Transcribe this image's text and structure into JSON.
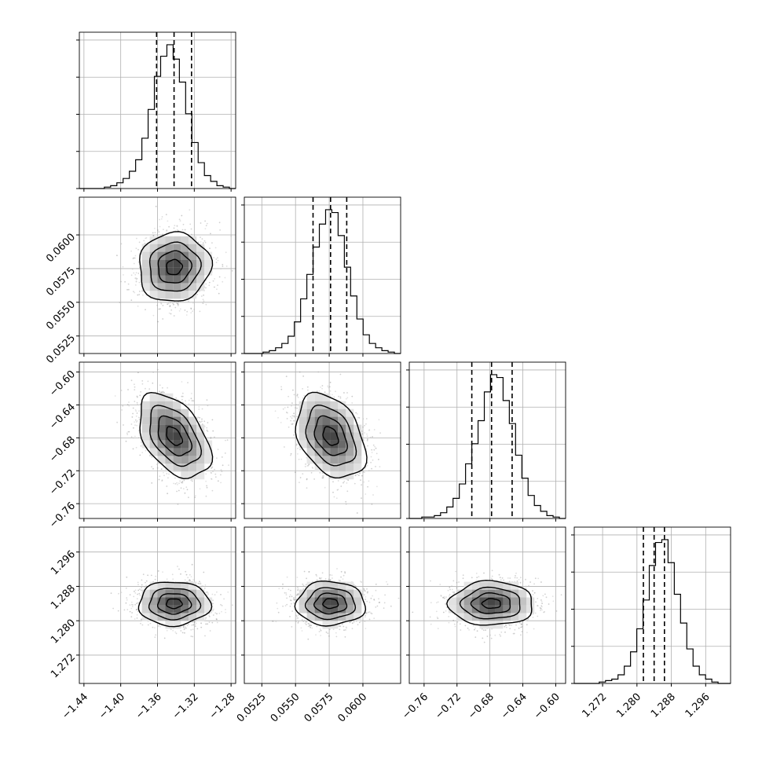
{
  "chart_data": {
    "type": "corner",
    "parameters": [
      {
        "range": [
          -1.445,
          -1.275
        ],
        "ticks": [
          -1.44,
          -1.4,
          -1.36,
          -1.32,
          -1.28
        ],
        "tick_labels": [
          "−1.44",
          "−1.40",
          "−1.36",
          "−1.32",
          "−1.28"
        ],
        "quantiles": [
          -1.361,
          -1.342,
          -1.323
        ],
        "mean": -1.342,
        "sd": 0.019
      },
      {
        "range": [
          0.0512,
          0.0628
        ],
        "ticks": [
          0.0525,
          0.055,
          0.0575,
          0.06
        ],
        "tick_labels": [
          "0.0525",
          "0.0550",
          "0.0575",
          "0.0600"
        ],
        "quantiles": [
          0.0563,
          0.0576,
          0.0588
        ],
        "mean": 0.0576,
        "sd": 0.00125
      },
      {
        "range": [
          -0.778,
          -0.588
        ],
        "ticks": [
          -0.76,
          -0.72,
          -0.68,
          -0.64,
          -0.6
        ],
        "tick_labels": [
          "−0.76",
          "−0.72",
          "−0.68",
          "−0.64",
          "−0.60"
        ],
        "quantiles": [
          -0.702,
          -0.678,
          -0.653
        ],
        "mean": -0.678,
        "sd": 0.025
      },
      {
        "range": [
          1.2654,
          1.3018
        ],
        "ticks": [
          1.272,
          1.28,
          1.288,
          1.296
        ],
        "tick_labels": [
          "1.272",
          "1.280",
          "1.288",
          "1.296"
        ],
        "quantiles": [
          1.2815,
          1.284,
          1.2864
        ],
        "mean": 1.284,
        "sd": 0.0025
      }
    ],
    "histograms": [
      [
        0,
        0,
        0,
        0,
        1,
        2,
        4,
        7,
        12,
        20,
        35,
        55,
        78,
        92,
        100,
        90,
        74,
        52,
        32,
        18,
        9,
        5,
        2,
        1,
        0
      ],
      [
        0,
        0,
        0,
        1,
        2,
        4,
        7,
        12,
        22,
        38,
        55,
        74,
        90,
        100,
        98,
        82,
        60,
        40,
        24,
        13,
        7,
        4,
        2,
        1,
        0
      ],
      [
        0,
        0,
        1,
        1,
        2,
        4,
        8,
        14,
        24,
        38,
        52,
        68,
        88,
        100,
        98,
        82,
        66,
        44,
        28,
        16,
        9,
        5,
        2,
        1,
        0
      ],
      [
        0,
        0,
        0,
        0,
        1,
        2,
        3,
        6,
        12,
        22,
        38,
        58,
        82,
        98,
        100,
        84,
        62,
        42,
        24,
        12,
        6,
        3,
        1,
        0,
        0
      ]
    ],
    "correlations": {
      "1-0": 0.05,
      "2-0": -0.45,
      "2-1": -0.35,
      "3-0": 0.0,
      "3-1": 0.0,
      "3-2": 0.0
    },
    "grid": true
  }
}
